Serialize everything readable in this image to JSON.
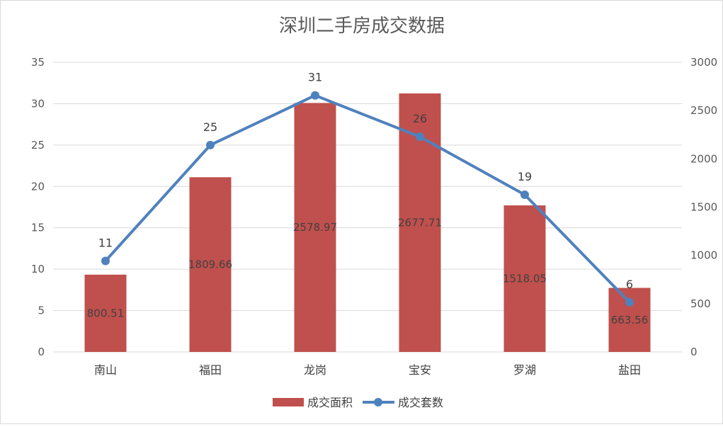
{
  "chart_data": {
    "type": "bar",
    "title": "深圳二手房成交数据",
    "categories": [
      "南山",
      "福田",
      "龙岗",
      "宝安",
      "罗湖",
      "盐田"
    ],
    "series": [
      {
        "name": "成交面积",
        "kind": "bar",
        "axis": "left",
        "color": "#c0504d",
        "values": [
          800.51,
          1809.66,
          2578.97,
          2677.71,
          1518.05,
          663.56
        ]
      },
      {
        "name": "成交套数",
        "kind": "line",
        "axis": "right",
        "color": "#4f81bd",
        "values": [
          11,
          25,
          31,
          26,
          19,
          6
        ]
      }
    ],
    "y_left": {
      "min": 0,
      "max": 35,
      "ticks": [
        "0",
        "5",
        "10",
        "15",
        "20",
        "25",
        "30",
        "35"
      ]
    },
    "y_right": {
      "min": 0,
      "max": 3000,
      "ticks": [
        "0",
        "500",
        "1000",
        "1500",
        "2000",
        "2500",
        "3000"
      ]
    },
    "grid": true,
    "legend": "bottom"
  }
}
